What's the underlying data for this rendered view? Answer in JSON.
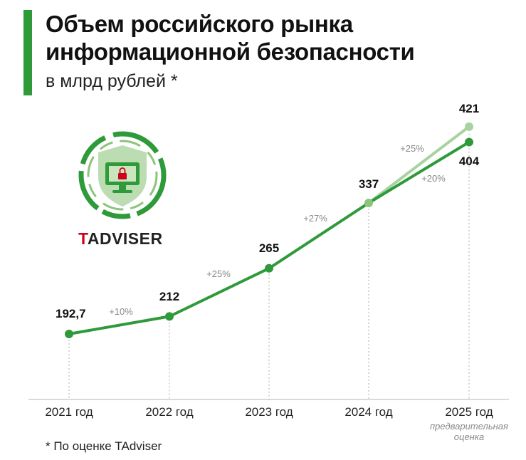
{
  "header": {
    "title_line1": "Объем российского рынка",
    "title_line2": "информационной безопасности",
    "subtitle": "в млрд рублей *"
  },
  "footnote": "* По оценке TAdviser",
  "brand": {
    "first": "T",
    "rest": "ADVISER"
  },
  "colors": {
    "accent": "#2e9a3a",
    "line": "#2e9a3a",
    "forecast_alt": "#a8d2a0",
    "grid": "#bbbbbb"
  },
  "chart_data": {
    "type": "line",
    "title": "Объем российского рынка информационной безопасности",
    "ylabel": "в млрд рублей *",
    "categories": [
      "2021 год",
      "2022 год",
      "2023 год",
      "2024 год",
      "2025 год"
    ],
    "category_note": {
      "index": 4,
      "text": "предварительная оценка"
    },
    "series": [
      {
        "values": [
          192.7,
          212,
          265,
          337,
          404
        ],
        "labels": [
          "192,7",
          "212",
          "265",
          "337",
          "404"
        ],
        "growth": [
          "",
          "+10%",
          "+25%",
          "+27%",
          "+20%"
        ]
      },
      {
        "values": [
          null,
          null,
          null,
          337,
          421
        ],
        "labels": [
          "",
          "",
          "",
          "",
          "421"
        ],
        "growth": [
          "",
          "",
          "",
          "",
          "+25%"
        ]
      }
    ],
    "ylim": [
      150,
      430
    ],
    "grid": "vertical dotted lines at each year"
  }
}
